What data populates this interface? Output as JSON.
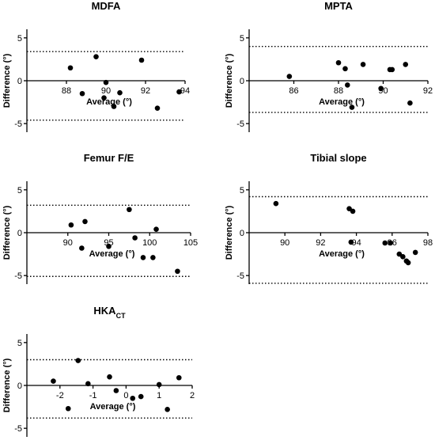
{
  "chart_data": [
    {
      "type": "scatter",
      "title": "MDFA",
      "xlabel": "Average (°)",
      "ylabel": "Difference (°)",
      "xlim": [
        86,
        94
      ],
      "ylim": [
        -6,
        6
      ],
      "xticks": [
        88,
        90,
        92,
        94
      ],
      "yticks": [
        -5,
        0,
        5
      ],
      "reference_lines": [
        3.4,
        -4.6
      ],
      "points": [
        [
          88.2,
          1.5
        ],
        [
          88.8,
          -1.5
        ],
        [
          89.5,
          2.8
        ],
        [
          89.9,
          -2.0
        ],
        [
          90.0,
          -0.2
        ],
        [
          90.4,
          -3.0
        ],
        [
          90.7,
          -1.4
        ],
        [
          91.8,
          2.4
        ],
        [
          92.6,
          -3.2
        ],
        [
          93.7,
          -1.3
        ]
      ]
    },
    {
      "type": "scatter",
      "title": "MPTA",
      "xlabel": "Average (°)",
      "ylabel": "Difference (°)",
      "xlim": [
        84,
        92
      ],
      "ylim": [
        -6,
        6
      ],
      "xticks": [
        86,
        88,
        90,
        92
      ],
      "yticks": [
        -5,
        0,
        5
      ],
      "reference_lines": [
        4.0,
        -3.7
      ],
      "points": [
        [
          85.8,
          0.5
        ],
        [
          88.0,
          2.1
        ],
        [
          88.3,
          1.4
        ],
        [
          88.4,
          -0.5
        ],
        [
          88.6,
          -3.1
        ],
        [
          89.1,
          1.9
        ],
        [
          89.9,
          -0.9
        ],
        [
          90.3,
          1.3
        ],
        [
          90.4,
          1.3
        ],
        [
          91.0,
          1.9
        ],
        [
          91.2,
          -2.6
        ]
      ]
    },
    {
      "type": "scatter",
      "title": "Femur F/E",
      "xlabel": "Average (°)",
      "ylabel": "Difference (°)",
      "xlim": [
        85,
        105
      ],
      "ylim": [
        -6,
        6
      ],
      "xticks": [
        90,
        95,
        100,
        105
      ],
      "yticks": [
        -5,
        0,
        5
      ],
      "reference_lines": [
        3.2,
        -5.1
      ],
      "points": [
        [
          90.4,
          0.9
        ],
        [
          91.7,
          -1.8
        ],
        [
          92.1,
          1.3
        ],
        [
          95.0,
          -1.6
        ],
        [
          97.5,
          2.7
        ],
        [
          98.2,
          -0.6
        ],
        [
          99.2,
          -2.9
        ],
        [
          100.4,
          -2.9
        ],
        [
          100.8,
          0.4
        ],
        [
          103.4,
          -4.5
        ]
      ]
    },
    {
      "type": "scatter",
      "title": "Tibial slope",
      "xlabel": "Average (°)",
      "ylabel": "Difference (°)",
      "xlim": [
        88,
        98
      ],
      "ylim": [
        -6,
        6
      ],
      "xticks": [
        90,
        92,
        94,
        96,
        98
      ],
      "yticks": [
        -5,
        0,
        5
      ],
      "reference_lines": [
        4.2,
        -5.9
      ],
      "points": [
        [
          89.5,
          3.4
        ],
        [
          93.6,
          2.8
        ],
        [
          93.8,
          2.5
        ],
        [
          93.7,
          -1.1
        ],
        [
          95.6,
          -1.2
        ],
        [
          95.9,
          -1.2
        ],
        [
          96.4,
          -2.5
        ],
        [
          96.6,
          -2.8
        ],
        [
          96.8,
          -3.3
        ],
        [
          96.9,
          -3.5
        ],
        [
          97.3,
          -2.3
        ]
      ]
    },
    {
      "type": "scatter",
      "title": "HKA",
      "title_sub": "CT",
      "xlabel": "Average (°)",
      "ylabel": "Difference (°)",
      "xlim": [
        -3,
        2
      ],
      "ylim": [
        -6,
        6
      ],
      "xticks": [
        -2,
        -1,
        0,
        1,
        2
      ],
      "yticks": [
        -5,
        0,
        5
      ],
      "reference_lines": [
        3.0,
        -3.8
      ],
      "points": [
        [
          -2.2,
          0.5
        ],
        [
          -1.75,
          -2.7
        ],
        [
          -1.45,
          2.9
        ],
        [
          -1.15,
          0.2
        ],
        [
          -0.5,
          1.0
        ],
        [
          -0.3,
          -0.6
        ],
        [
          0.2,
          -1.5
        ],
        [
          0.45,
          -1.3
        ],
        [
          1.0,
          0.1
        ],
        [
          1.25,
          -2.8
        ],
        [
          1.6,
          0.9
        ]
      ]
    }
  ]
}
